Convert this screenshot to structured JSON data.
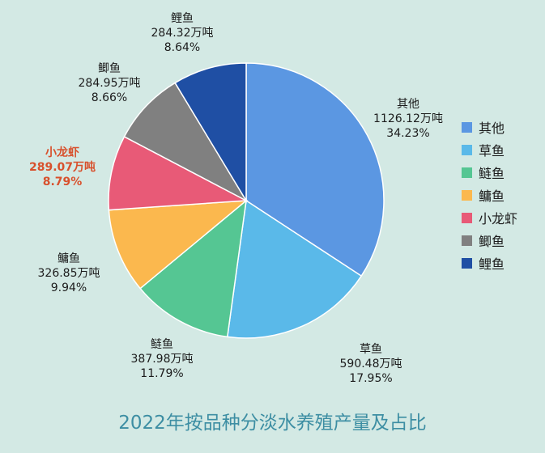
{
  "chart_data": {
    "type": "pie",
    "title": "2022年按品种分淡水养殖产量及占比",
    "unit": "万吨",
    "start_angle_deg": 0,
    "direction": "clockwise",
    "slices": [
      {
        "name": "其他",
        "value": 1126.12,
        "value_label": "1126.12万吨",
        "percent_label": "34.23%",
        "color": "#5b97e2",
        "highlight": false
      },
      {
        "name": "草鱼",
        "value": 590.48,
        "value_label": "590.48万吨",
        "percent_label": "17.95%",
        "color": "#5ab9e9",
        "highlight": false
      },
      {
        "name": "鲢鱼",
        "value": 387.98,
        "value_label": "387.98万吨",
        "percent_label": "11.79%",
        "color": "#55c693",
        "highlight": false
      },
      {
        "name": "鳙鱼",
        "value": 326.85,
        "value_label": "326.85万吨",
        "percent_label": "9.94%",
        "color": "#fbb84e",
        "highlight": false
      },
      {
        "name": "小龙虾",
        "value": 289.07,
        "value_label": "289.07万吨",
        "percent_label": "8.79%",
        "color": "#e85a77",
        "highlight": true
      },
      {
        "name": "鲫鱼",
        "value": 284.95,
        "value_label": "284.95万吨",
        "percent_label": "8.66%",
        "color": "#808080",
        "highlight": false
      },
      {
        "name": "鲤鱼",
        "value": 284.32,
        "value_label": "284.32万吨",
        "percent_label": "8.64%",
        "color": "#1f4fa4",
        "highlight": false
      }
    ],
    "legend_position": "right"
  }
}
